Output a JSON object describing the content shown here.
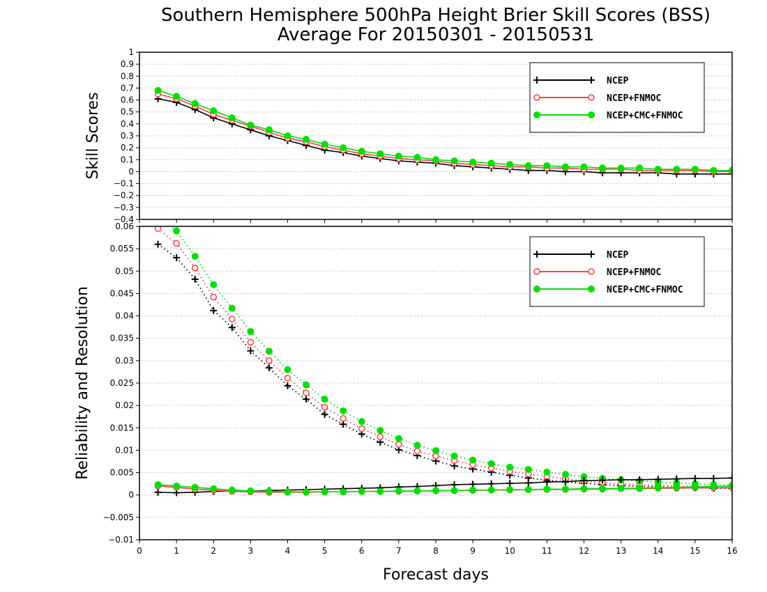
{
  "chart_data": {
    "type": "line",
    "title": "Southern Hemisphere 500hPa Height Brier Skill Scores (BSS)",
    "subtitle": "Average For 20150301 - 20150531",
    "xlabel": "Forecast days",
    "xlim": [
      0,
      16
    ],
    "x_ticks": [
      "0",
      "1",
      "2",
      "3",
      "4",
      "5",
      "6",
      "7",
      "8",
      "9",
      "10",
      "11",
      "12",
      "13",
      "14",
      "15",
      "16"
    ],
    "x": [
      0.5,
      1,
      1.5,
      2,
      2.5,
      3,
      3.5,
      4,
      4.5,
      5,
      5.5,
      6,
      6.5,
      7,
      7.5,
      8,
      8.5,
      9,
      9.5,
      10,
      10.5,
      11,
      11.5,
      12,
      12.5,
      13,
      13.5,
      14,
      14.5,
      15,
      15.5,
      16
    ],
    "colors": {
      "NCEP": "#000000",
      "NCEP+FNMOC": "#ff4040",
      "NCEP+CMC+FNMOC": "#00dd00"
    },
    "panels": [
      {
        "ylabel": "Skill Scores",
        "ylim": [
          -0.4,
          1
        ],
        "y_ticks": [
          "−0.4",
          "−0.3",
          "−0.2",
          "−0.1",
          "0",
          "0.1",
          "0.2",
          "0.3",
          "0.4",
          "0.5",
          "0.6",
          "0.7",
          "0.8",
          "0.9",
          "1"
        ],
        "legend": {
          "position": "top-right",
          "entries": [
            "NCEP",
            "NCEP+FNMOC",
            "NCEP+CMC+FNMOC"
          ]
        },
        "series": [
          {
            "name": "NCEP",
            "marker": "plus",
            "style": "solid",
            "values": [
              0.61,
              0.58,
              0.52,
              0.45,
              0.4,
              0.35,
              0.3,
              0.26,
              0.22,
              0.18,
              0.16,
              0.13,
              0.11,
              0.09,
              0.08,
              0.07,
              0.05,
              0.04,
              0.03,
              0.02,
              0.01,
              0.01,
              0.0,
              0.0,
              -0.01,
              -0.01,
              -0.01,
              -0.01,
              -0.02,
              -0.02,
              -0.02,
              -0.02
            ]
          },
          {
            "name": "NCEP+FNMOC",
            "marker": "circle",
            "style": "solid",
            "values": [
              0.65,
              0.61,
              0.55,
              0.48,
              0.43,
              0.38,
              0.33,
              0.28,
              0.25,
              0.21,
              0.18,
              0.15,
              0.13,
              0.11,
              0.1,
              0.09,
              0.07,
              0.06,
              0.05,
              0.04,
              0.04,
              0.03,
              0.03,
              0.02,
              0.02,
              0.02,
              0.01,
              0.01,
              0.01,
              0.01,
              0.0,
              0.0
            ]
          },
          {
            "name": "NCEP+CMC+FNMOC",
            "marker": "dot",
            "style": "solid",
            "values": [
              0.68,
              0.63,
              0.57,
              0.51,
              0.45,
              0.39,
              0.35,
              0.3,
              0.27,
              0.23,
              0.2,
              0.17,
              0.15,
              0.13,
              0.12,
              0.1,
              0.09,
              0.08,
              0.07,
              0.06,
              0.05,
              0.05,
              0.04,
              0.04,
              0.03,
              0.03,
              0.03,
              0.02,
              0.02,
              0.02,
              0.01,
              0.01
            ]
          }
        ]
      },
      {
        "ylabel": "Reliability and Resolution",
        "ylim": [
          -0.01,
          0.06
        ],
        "y_ticks": [
          "−0.01",
          "−0.005",
          "0",
          "0.005",
          "0.01",
          "0.015",
          "0.02",
          "0.025",
          "0.03",
          "0.035",
          "0.04",
          "0.045",
          "0.05",
          "0.055",
          "0.06"
        ],
        "legend": {
          "position": "top-right",
          "entries": [
            "NCEP",
            "NCEP+FNMOC",
            "NCEP+CMC+FNMOC"
          ]
        },
        "series": [
          {
            "name": "NCEP",
            "role": "resolution",
            "marker": "plus",
            "style": "dotted",
            "values": [
              0.056,
              0.053,
              0.0482,
              0.0412,
              0.0374,
              0.0322,
              0.0284,
              0.0244,
              0.0214,
              0.018,
              0.0158,
              0.0136,
              0.0118,
              0.0101,
              0.0088,
              0.0076,
              0.0065,
              0.0058,
              0.0051,
              0.0044,
              0.0038,
              0.0033,
              0.0029,
              0.0026,
              0.0023,
              0.0021,
              0.0019,
              0.0018,
              0.0017,
              0.0016,
              0.0015,
              0.0015
            ]
          },
          {
            "name": "NCEP+FNMOC",
            "role": "resolution",
            "marker": "circle",
            "style": "dotted",
            "values": [
              0.0595,
              0.0562,
              0.0507,
              0.0442,
              0.0393,
              0.0341,
              0.03,
              0.0261,
              0.0228,
              0.0196,
              0.0171,
              0.0148,
              0.013,
              0.0113,
              0.0098,
              0.0087,
              0.0077,
              0.0068,
              0.006,
              0.0053,
              0.0047,
              0.0041,
              0.0036,
              0.0031,
              0.0028,
              0.0025,
              0.0023,
              0.0021,
              0.002,
              0.0019,
              0.0018,
              0.0018
            ]
          },
          {
            "name": "NCEP+CMC+FNMOC",
            "role": "resolution",
            "marker": "dot",
            "style": "dotted",
            "values": [
              0.0625,
              0.059,
              0.0533,
              0.047,
              0.0417,
              0.0365,
              0.0321,
              0.028,
              0.0246,
              0.0214,
              0.0188,
              0.0164,
              0.0144,
              0.0126,
              0.0111,
              0.0099,
              0.0087,
              0.0078,
              0.007,
              0.0062,
              0.0057,
              0.0051,
              0.0046,
              0.0041,
              0.0037,
              0.0034,
              0.0031,
              0.0029,
              0.0027,
              0.0025,
              0.0023,
              0.0022
            ]
          },
          {
            "name": "NCEP",
            "role": "reliability",
            "marker": "plus",
            "style": "solid",
            "values": [
              0.0006,
              0.0005,
              0.0006,
              0.0008,
              0.0009,
              0.0009,
              0.001,
              0.0011,
              0.0012,
              0.0013,
              0.0014,
              0.0015,
              0.0016,
              0.0018,
              0.0019,
              0.0021,
              0.0023,
              0.0024,
              0.0025,
              0.0026,
              0.0027,
              0.0029,
              0.003,
              0.0032,
              0.0033,
              0.0034,
              0.0034,
              0.0035,
              0.0036,
              0.0037,
              0.0037,
              0.0038
            ]
          },
          {
            "name": "NCEP+FNMOC",
            "role": "reliability",
            "marker": "circle",
            "style": "solid",
            "values": [
              0.002,
              0.0017,
              0.0013,
              0.0011,
              0.0008,
              0.0007,
              0.0006,
              0.0006,
              0.0006,
              0.0007,
              0.0007,
              0.0008,
              0.0008,
              0.0008,
              0.0009,
              0.0009,
              0.001,
              0.001,
              0.0011,
              0.0011,
              0.0012,
              0.0012,
              0.0012,
              0.0013,
              0.0013,
              0.0014,
              0.0014,
              0.0015,
              0.0015,
              0.0016,
              0.0016,
              0.0016
            ]
          },
          {
            "name": "NCEP+CMC+FNMOC",
            "role": "reliability",
            "marker": "dot",
            "style": "solid",
            "values": [
              0.0023,
              0.002,
              0.0017,
              0.0014,
              0.0011,
              0.0009,
              0.0008,
              0.0007,
              0.0007,
              0.0007,
              0.0007,
              0.0008,
              0.0008,
              0.0009,
              0.0009,
              0.001,
              0.001,
              0.0011,
              0.0011,
              0.0012,
              0.0012,
              0.0013,
              0.0013,
              0.0014,
              0.0014,
              0.0015,
              0.0015,
              0.0016,
              0.0017,
              0.0018,
              0.0019,
              0.002
            ]
          }
        ]
      }
    ]
  }
}
